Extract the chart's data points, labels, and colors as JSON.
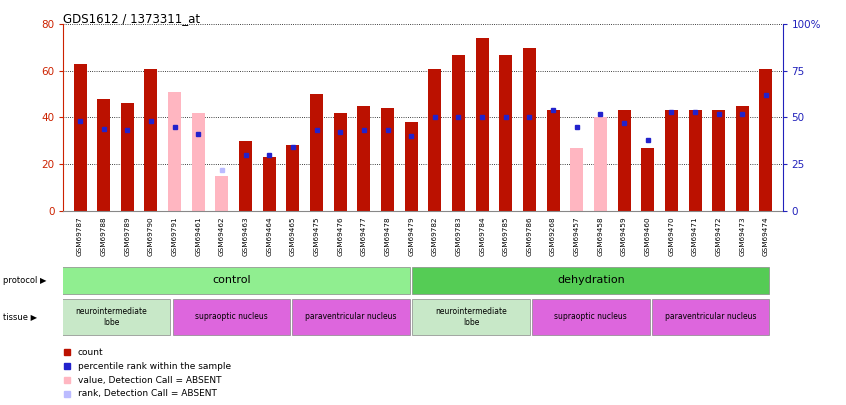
{
  "title": "GDS1612 / 1373311_at",
  "samples": [
    "GSM69787",
    "GSM69788",
    "GSM69789",
    "GSM69790",
    "GSM69791",
    "GSM69461",
    "GSM69462",
    "GSM69463",
    "GSM69464",
    "GSM69465",
    "GSM69475",
    "GSM69476",
    "GSM69477",
    "GSM69478",
    "GSM69479",
    "GSM69782",
    "GSM69783",
    "GSM69784",
    "GSM69785",
    "GSM69786",
    "GSM69268",
    "GSM69457",
    "GSM69458",
    "GSM69459",
    "GSM69460",
    "GSM69470",
    "GSM69471",
    "GSM69472",
    "GSM69473",
    "GSM69474"
  ],
  "bar_values": [
    63,
    48,
    46,
    61,
    51,
    42,
    15,
    30,
    23,
    28,
    50,
    42,
    45,
    44,
    38,
    61,
    67,
    74,
    67,
    70,
    43,
    27,
    40,
    43,
    27,
    43,
    43,
    43,
    45,
    61
  ],
  "rank_values": [
    48,
    44,
    43,
    48,
    45,
    41,
    22,
    30,
    30,
    34,
    43,
    42,
    43,
    43,
    40,
    50,
    50,
    50,
    50,
    50,
    54,
    45,
    52,
    47,
    38,
    53,
    53,
    52,
    52,
    62
  ],
  "absent_bars": [
    4,
    5,
    6,
    21,
    22
  ],
  "absent_ranks": [
    6
  ],
  "ylim_left": [
    0,
    80
  ],
  "ylim_right": [
    0,
    100
  ],
  "yticks_left": [
    0,
    20,
    40,
    60,
    80
  ],
  "yticks_right": [
    0,
    25,
    50,
    75,
    100
  ],
  "bar_color_normal": "#bb1100",
  "bar_color_absent": "#ffb6c1",
  "rank_color_normal": "#2222cc",
  "rank_color_absent": "#bbbbff",
  "bg_color": "#ffffff",
  "left_axis_color": "#cc2200",
  "right_axis_color": "#2222bb",
  "protocol_control_color": "#90EE90",
  "protocol_dehydration_color": "#55cc55",
  "tissue_neuro_color": "#c8e8c8",
  "tissue_supraoptic_color": "#dd66dd",
  "tissue_para_color": "#dd66dd"
}
